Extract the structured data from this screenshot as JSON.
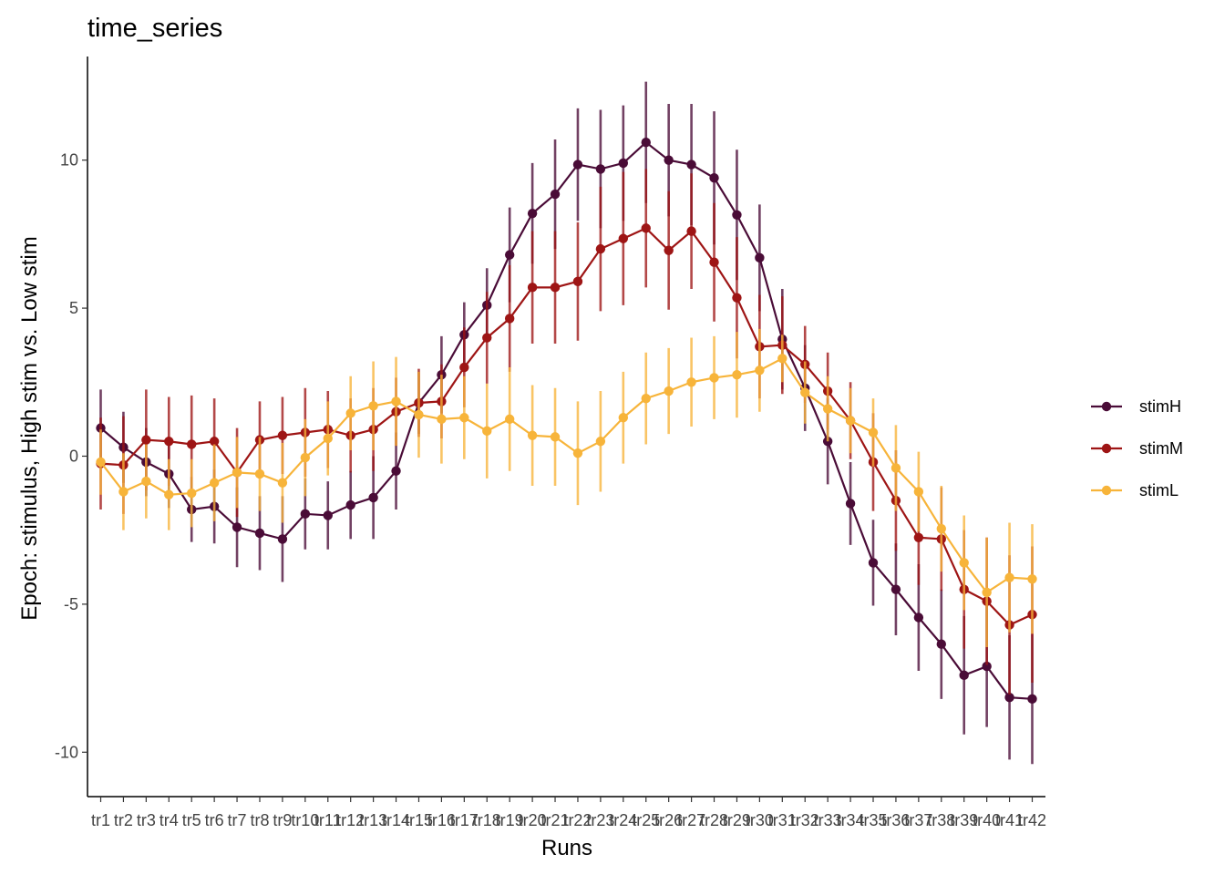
{
  "chart_data": {
    "type": "line",
    "title": "time_series",
    "xlabel": "Runs",
    "ylabel": "Epoch: stimulus, High stim vs. Low stim",
    "ylim": [
      -11.5,
      13.5
    ],
    "yticks": [
      10,
      5,
      0,
      -5,
      -10
    ],
    "ytick_labels": [
      "10",
      "5",
      "0",
      "-5",
      "-10"
    ],
    "grid": false,
    "legend_position": "right",
    "categories": [
      "tr1",
      "tr2",
      "tr3",
      "tr4",
      "tr5",
      "tr6",
      "tr7",
      "tr8",
      "tr9",
      "tr10",
      "tr11",
      "tr12",
      "tr13",
      "tr14",
      "tr15",
      "tr16",
      "tr17",
      "tr18",
      "tr19",
      "tr20",
      "tr21",
      "tr22",
      "tr23",
      "tr24",
      "tr25",
      "tr26",
      "tr27",
      "tr28",
      "tr29",
      "tr30",
      "tr31",
      "tr32",
      "tr33",
      "tr34",
      "tr35",
      "tr36",
      "tr37",
      "tr38",
      "tr39",
      "tr40",
      "tr41",
      "tr42"
    ],
    "series": [
      {
        "name": "stimH",
        "color": "#4a0c37",
        "values": [
          0.95,
          0.3,
          -0.2,
          -0.6,
          -1.8,
          -1.7,
          -2.4,
          -2.6,
          -2.8,
          -1.95,
          -2.0,
          -1.65,
          -1.4,
          -0.5,
          1.8,
          2.75,
          4.1,
          5.1,
          6.8,
          8.2,
          8.85,
          9.85,
          9.7,
          9.9,
          10.6,
          10.0,
          9.85,
          9.4,
          8.15,
          6.7,
          3.95,
          2.3,
          0.5,
          -1.6,
          -3.6,
          -4.5,
          -5.45,
          -6.35,
          -7.4,
          -7.1,
          -8.15,
          -8.2
        ],
        "errors": [
          1.3,
          1.2,
          1.15,
          1.15,
          1.1,
          1.25,
          1.35,
          1.25,
          1.45,
          1.2,
          1.15,
          1.15,
          1.4,
          1.3,
          1.05,
          1.3,
          1.1,
          1.25,
          1.6,
          1.7,
          1.85,
          1.9,
          2.0,
          1.95,
          2.05,
          1.9,
          2.05,
          2.25,
          2.2,
          1.8,
          1.7,
          1.45,
          1.45,
          1.4,
          1.45,
          1.55,
          1.8,
          1.85,
          2.0,
          2.05,
          2.1,
          2.2
        ]
      },
      {
        "name": "stimM",
        "color": "#9e1515",
        "values": [
          -0.25,
          -0.3,
          0.55,
          0.5,
          0.4,
          0.5,
          -0.55,
          0.55,
          0.7,
          0.8,
          0.9,
          0.7,
          0.9,
          1.5,
          1.8,
          1.85,
          3.0,
          4.0,
          4.65,
          5.7,
          5.7,
          5.9,
          7.0,
          7.35,
          7.7,
          6.95,
          7.6,
          6.55,
          5.35,
          3.7,
          3.75,
          3.1,
          2.2,
          1.2,
          -0.2,
          -1.5,
          -2.75,
          -2.8,
          -4.5,
          -4.9,
          -5.7,
          -5.35
        ],
        "errors": [
          1.55,
          1.65,
          1.7,
          1.5,
          1.65,
          1.45,
          1.5,
          1.3,
          1.3,
          1.5,
          1.3,
          1.25,
          1.4,
          1.15,
          1.15,
          1.25,
          1.35,
          1.55,
          1.8,
          1.9,
          1.9,
          2.0,
          2.1,
          2.25,
          2.0,
          2.0,
          1.95,
          2.0,
          2.05,
          1.75,
          1.65,
          1.3,
          1.3,
          1.3,
          1.65,
          1.7,
          1.6,
          1.75,
          2.0,
          2.15,
          2.35,
          2.3
        ]
      },
      {
        "name": "stimL",
        "color": "#f7b43a",
        "values": [
          -0.2,
          -1.2,
          -0.85,
          -1.3,
          -1.25,
          -0.9,
          -0.55,
          -0.6,
          -0.9,
          -0.05,
          0.6,
          1.45,
          1.7,
          1.85,
          1.4,
          1.25,
          1.3,
          0.85,
          1.25,
          0.7,
          0.65,
          0.1,
          0.5,
          1.3,
          1.95,
          2.2,
          2.5,
          2.65,
          2.75,
          2.9,
          3.3,
          2.15,
          1.6,
          1.2,
          0.8,
          -0.4,
          -1.2,
          -2.45,
          -3.6,
          -4.6,
          -4.1,
          -4.15
        ],
        "errors": [
          1.1,
          1.3,
          1.25,
          1.2,
          1.15,
          1.3,
          1.2,
          1.25,
          1.35,
          1.3,
          1.25,
          1.25,
          1.5,
          1.5,
          1.45,
          1.5,
          1.4,
          1.6,
          1.75,
          1.7,
          1.65,
          1.75,
          1.7,
          1.55,
          1.55,
          1.45,
          1.5,
          1.4,
          1.45,
          1.4,
          0.8,
          1.05,
          1.1,
          1.1,
          1.15,
          1.45,
          1.35,
          1.45,
          1.6,
          1.85,
          1.85,
          1.85
        ]
      }
    ]
  }
}
